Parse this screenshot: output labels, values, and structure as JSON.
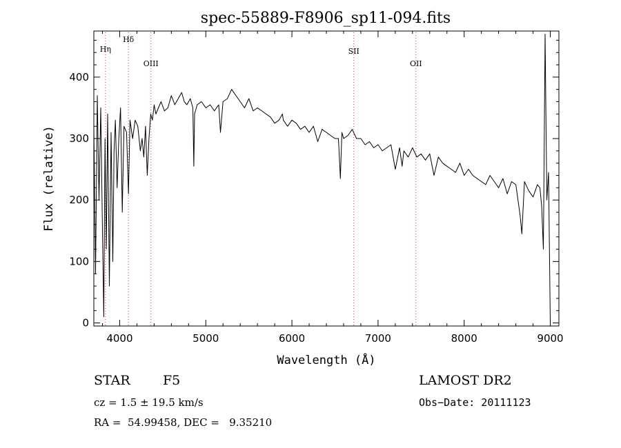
{
  "chart_data": {
    "type": "line",
    "title": "spec-55889-F8906_sp11-094.fits",
    "xlabel": "Wavelength (Å)",
    "ylabel": "Flux (relative)",
    "xlim": [
      3700,
      9100
    ],
    "ylim": [
      -5,
      475
    ],
    "xticks": [
      4000,
      5000,
      6000,
      7000,
      8000,
      9000
    ],
    "yticks": [
      0,
      100,
      200,
      300,
      400
    ],
    "grid": false,
    "series": [
      {
        "color": "#000000",
        "x": [
          3700,
          3720,
          3740,
          3760,
          3780,
          3800,
          3815,
          3830,
          3845,
          3860,
          3880,
          3900,
          3920,
          3935,
          3950,
          3970,
          3990,
          4010,
          4030,
          4050,
          4080,
          4102,
          4120,
          4150,
          4180,
          4210,
          4240,
          4260,
          4280,
          4300,
          4320,
          4340,
          4360,
          4380,
          4400,
          4420,
          4450,
          4480,
          4520,
          4560,
          4600,
          4640,
          4680,
          4720,
          4750,
          4780,
          4820,
          4850,
          4861,
          4870,
          4900,
          4950,
          5000,
          5050,
          5100,
          5150,
          5170,
          5200,
          5250,
          5300,
          5350,
          5400,
          5450,
          5500,
          5550,
          5600,
          5650,
          5700,
          5750,
          5800,
          5850,
          5890,
          5900,
          5950,
          6000,
          6050,
          6100,
          6150,
          6200,
          6250,
          6300,
          6350,
          6400,
          6450,
          6500,
          6540,
          6563,
          6580,
          6600,
          6650,
          6700,
          6750,
          6800,
          6850,
          6900,
          6950,
          7000,
          7050,
          7100,
          7150,
          7200,
          7250,
          7280,
          7300,
          7350,
          7400,
          7450,
          7500,
          7550,
          7600,
          7650,
          7700,
          7750,
          7800,
          7850,
          7900,
          7950,
          8000,
          8050,
          8100,
          8150,
          8200,
          8250,
          8300,
          8350,
          8400,
          8450,
          8500,
          8550,
          8600,
          8650,
          8670,
          8700,
          8750,
          8800,
          8850,
          8880,
          8900,
          8920,
          8940,
          8960,
          8980,
          9000
        ],
        "y": [
          320,
          80,
          370,
          200,
          350,
          150,
          10,
          300,
          120,
          340,
          60,
          310,
          100,
          280,
          330,
          220,
          300,
          350,
          180,
          320,
          310,
          210,
          330,
          300,
          330,
          320,
          280,
          300,
          270,
          320,
          240,
          300,
          340,
          330,
          355,
          340,
          350,
          360,
          345,
          350,
          370,
          355,
          365,
          375,
          360,
          355,
          365,
          350,
          255,
          340,
          355,
          360,
          350,
          355,
          345,
          355,
          310,
          360,
          365,
          380,
          370,
          360,
          350,
          365,
          345,
          350,
          345,
          340,
          335,
          325,
          330,
          340,
          330,
          320,
          330,
          325,
          315,
          320,
          310,
          320,
          295,
          315,
          310,
          305,
          300,
          300,
          235,
          310,
          300,
          305,
          315,
          300,
          300,
          290,
          295,
          285,
          290,
          280,
          285,
          290,
          250,
          285,
          255,
          280,
          270,
          285,
          270,
          275,
          265,
          275,
          240,
          270,
          260,
          255,
          250,
          245,
          260,
          240,
          250,
          240,
          235,
          230,
          225,
          240,
          230,
          220,
          235,
          210,
          230,
          225,
          175,
          145,
          230,
          215,
          205,
          225,
          220,
          190,
          120,
          470,
          200,
          245,
          0
        ]
      }
    ],
    "annotations": [
      {
        "label": "Hη",
        "x": 3835
      },
      {
        "label": "Hδ",
        "x": 4102
      },
      {
        "label": "OIII",
        "x": 4363
      },
      {
        "label": "SII",
        "x": 6718
      },
      {
        "label": "OII",
        "x": 7440
      }
    ]
  },
  "info": {
    "object_class": "STAR",
    "subclass": "F5",
    "survey": "LAMOST DR2",
    "cz": "cz = 1.5 ± 19.5 km/s",
    "obs_date": "Obs−Date: 20111123",
    "coords": "RA =  54.99458, DEC =   9.35210"
  }
}
